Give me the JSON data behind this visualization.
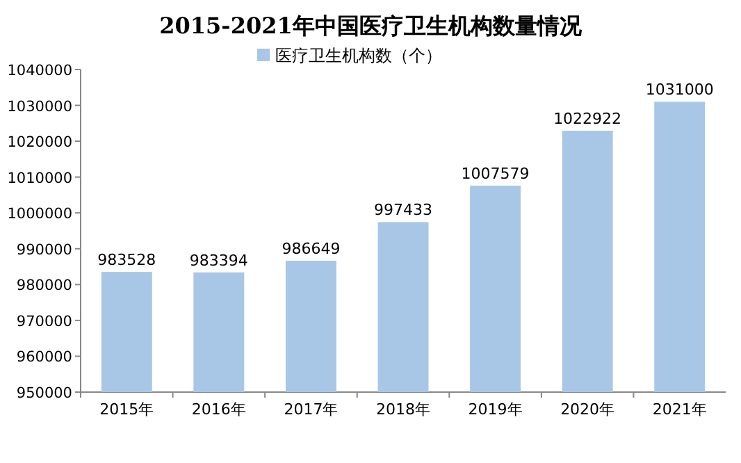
{
  "chart_data": {
    "type": "bar",
    "title": "2015-2021年中国医疗卫生机构数量情况",
    "categories": [
      "2015年",
      "2016年",
      "2017年",
      "2018年",
      "2019年",
      "2020年",
      "2021年"
    ],
    "series": [
      {
        "name": "医疗卫生机构数（个）",
        "color": "#a8c6e6",
        "values": [
          983528,
          983394,
          986649,
          997433,
          1007579,
          1022922,
          1031000
        ]
      }
    ],
    "ylim": [
      950000,
      1040000
    ],
    "yticks": [
      950000,
      960000,
      970000,
      980000,
      990000,
      1000000,
      1010000,
      1020000,
      1030000,
      1040000
    ],
    "data_labels": true,
    "legend": "top"
  }
}
